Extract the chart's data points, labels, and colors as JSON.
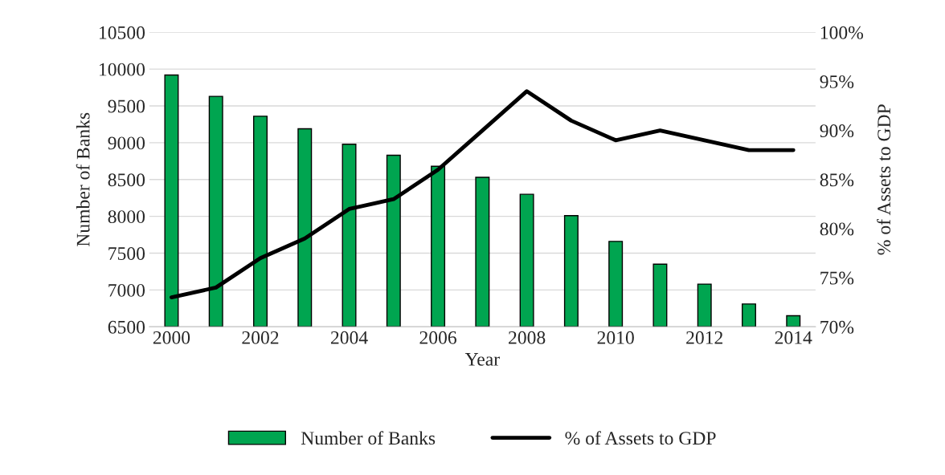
{
  "chart_data": {
    "type": "bar",
    "xlabel": "Year",
    "ylabel": "Number of Banks",
    "y2label": "% of Assets to GDP",
    "categories": [
      "2000",
      null,
      "2002",
      null,
      "2004",
      null,
      "2006",
      null,
      "2008",
      null,
      "2010",
      null,
      "2012",
      null,
      "2014"
    ],
    "series": [
      {
        "name": "Number of Banks",
        "color": "#00a550",
        "values": [
          9920,
          9630,
          9360,
          9190,
          8980,
          8830,
          8680,
          8530,
          8300,
          8010,
          7660,
          7350,
          7080,
          6810,
          6650
        ]
      },
      {
        "name": "% of Assets to GDP",
        "type": "line",
        "axis": "y2",
        "color": "#000000",
        "values": [
          73,
          74,
          77,
          79,
          82,
          83,
          86,
          90,
          94,
          91,
          89,
          90,
          89,
          88,
          88
        ]
      }
    ],
    "ylim": [
      6500,
      10500
    ],
    "yticks": [
      6500,
      7000,
      7500,
      8000,
      8500,
      9000,
      9500,
      10000,
      10500
    ],
    "y2lim": [
      70,
      100
    ],
    "y2ticks": [
      {
        "value": 70,
        "label": "70%"
      },
      {
        "value": 75,
        "label": "75%"
      },
      {
        "value": 80,
        "label": "80%"
      },
      {
        "value": 85,
        "label": "85%"
      },
      {
        "value": 90,
        "label": "90%"
      },
      {
        "value": 95,
        "label": "95%"
      },
      {
        "value": 100,
        "label": "100%"
      }
    ],
    "grid": "y",
    "legend": "bottom",
    "marker": "none",
    "line_style": "solid"
  }
}
